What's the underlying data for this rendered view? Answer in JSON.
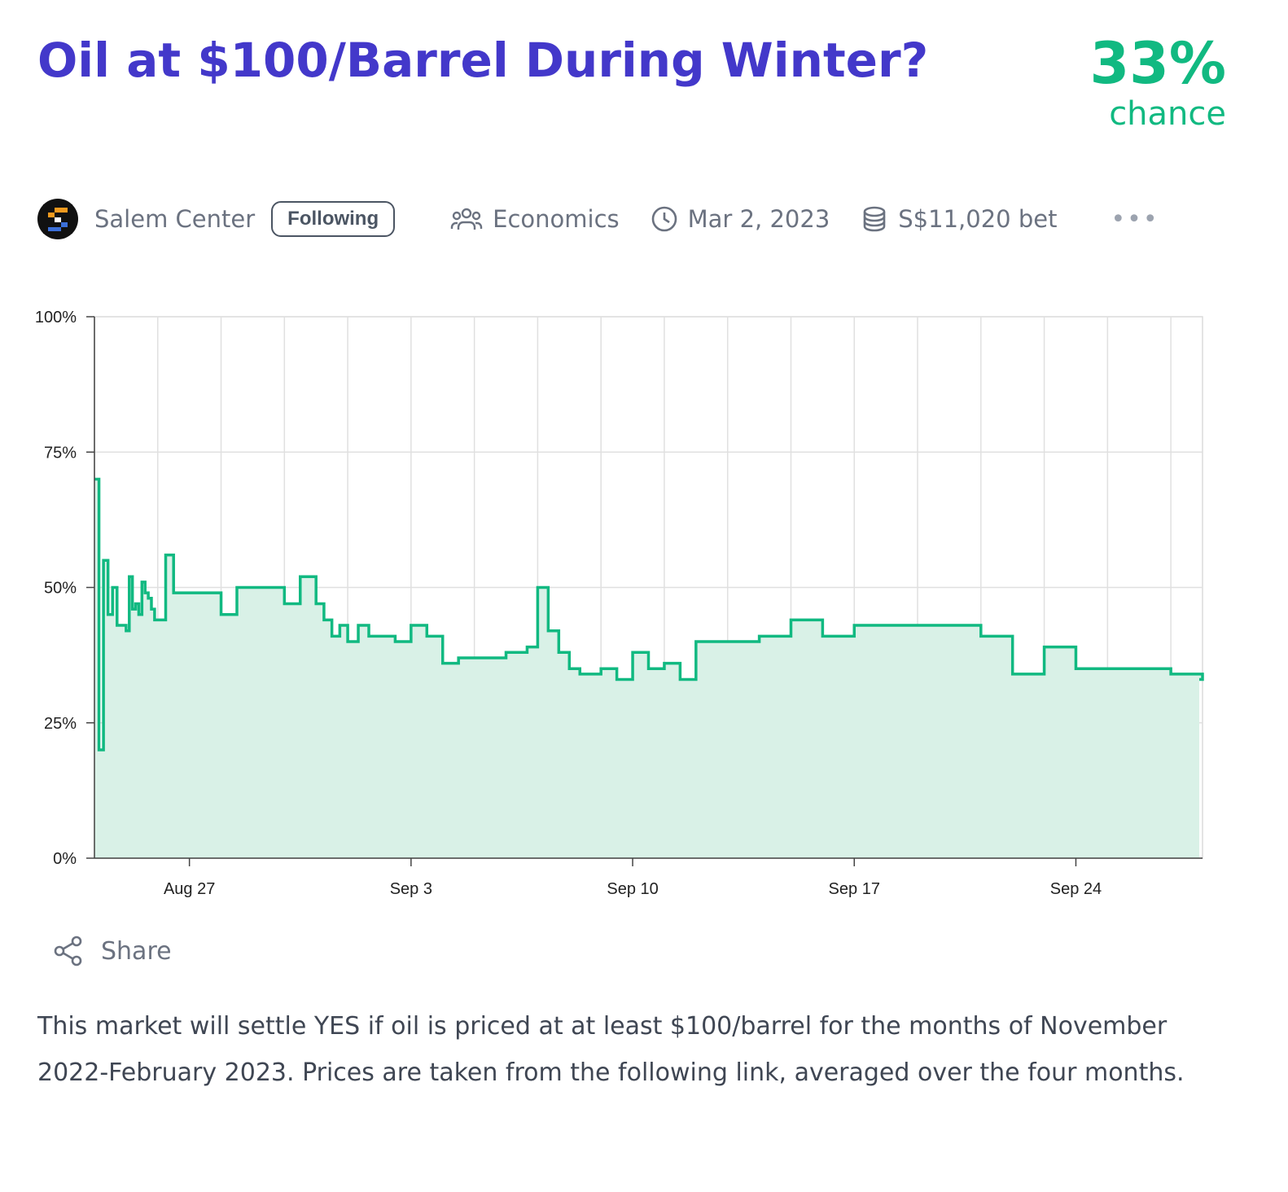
{
  "market": {
    "title": "Oil at $100/Barrel During Winter?",
    "probability": "33%",
    "probability_label": "chance"
  },
  "meta": {
    "creator": "Salem Center",
    "follow_label": "Following",
    "group": "Economics",
    "close_date": "Mar 2, 2023",
    "volume": "S$11,020 bet",
    "more_icon": "ellipsis-icon"
  },
  "share": {
    "label": "Share",
    "icon": "share-icon"
  },
  "description": "This market will settle YES if oil is priced at at least $100/barrel for the months of November 2022-February 2023. Prices are taken from the following link, averaged over the four months.",
  "colors": {
    "title": "#4338ca",
    "accent": "#11b981",
    "area_fill": "#d9f1e7"
  },
  "chart_data": {
    "type": "area",
    "ylabel": "",
    "xlabel": "",
    "ylim": [
      0,
      100
    ],
    "y_ticks": [
      0,
      25,
      50,
      75,
      100
    ],
    "y_tick_labels": [
      "0%",
      "25%",
      "50%",
      "75%",
      "100%"
    ],
    "x_range": [
      "Aug 24",
      "Sep 28"
    ],
    "x_ticks": [
      "Aug 27",
      "Sep 3",
      "Sep 10",
      "Sep 17",
      "Sep 24"
    ],
    "grid": true,
    "series": [
      {
        "x": [
          "Aug 24",
          "Aug 24",
          "Aug 24",
          "Aug 24",
          "Aug 24",
          "Aug 24",
          "Aug 24",
          "Aug 25",
          "Aug 25",
          "Aug 25",
          "Aug 25",
          "Aug 25",
          "Aug 25",
          "Aug 25",
          "Aug 25",
          "Aug 25",
          "Aug 25",
          "Aug 26",
          "Aug 26",
          "Aug 26",
          "Aug 26",
          "Aug 27",
          "Aug 27",
          "Aug 28",
          "Aug 28",
          "Aug 29",
          "Aug 29",
          "Aug 30",
          "Aug 30",
          "Aug 31",
          "Aug 31",
          "Aug 31",
          "Aug 31",
          "Sep 1",
          "Sep 1",
          "Sep 1",
          "Sep 2",
          "Sep 2",
          "Sep 3",
          "Sep 3",
          "Sep 4",
          "Sep 4",
          "Sep 5",
          "Sep 6",
          "Sep 6",
          "Sep 6",
          "Sep 7",
          "Sep 7",
          "Sep 7",
          "Sep 8",
          "Sep 8",
          "Sep 8",
          "Sep 9",
          "Sep 9",
          "Sep 10",
          "Sep 10",
          "Sep 11",
          "Sep 11",
          "Sep 12",
          "Sep 13",
          "Sep 14",
          "Sep 15",
          "Sep 16",
          "Sep 17",
          "Sep 18",
          "Sep 19",
          "Sep 20",
          "Sep 21",
          "Sep 22",
          "Sep 23",
          "Sep 24",
          "Sep 25",
          "Sep 26",
          "Sep 27",
          "Sep 28"
        ],
        "values": [
          70,
          20,
          55,
          45,
          50,
          43,
          43,
          42,
          52,
          46,
          47,
          45,
          51,
          49,
          48,
          46,
          44,
          44,
          56,
          49,
          49,
          49,
          49,
          45,
          50,
          50,
          50,
          47,
          52,
          47,
          44,
          41,
          43,
          40,
          43,
          41,
          41,
          40,
          43,
          41,
          36,
          37,
          37,
          38,
          38,
          39,
          50,
          42,
          38,
          35,
          34,
          34,
          35,
          33,
          38,
          35,
          36,
          33,
          40,
          40,
          41,
          44,
          41,
          43,
          43,
          43,
          43,
          41,
          34,
          39,
          35,
          35,
          35,
          34,
          33
        ]
      }
    ]
  }
}
